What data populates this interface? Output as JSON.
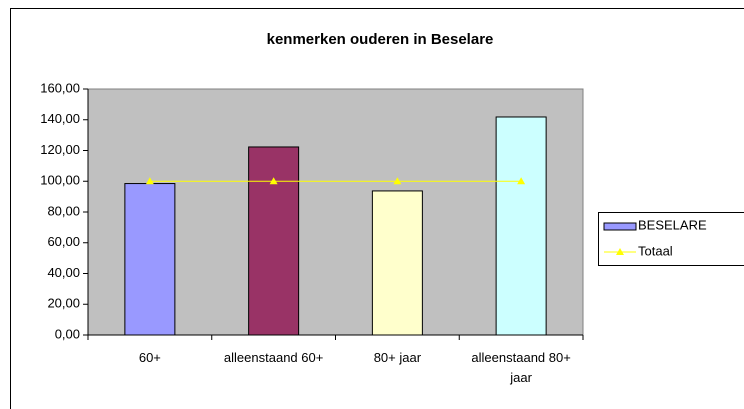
{
  "chart_data": {
    "type": "bar",
    "title": "kenmerken ouderen in Beselare",
    "categories": [
      "60+",
      "alleenstaand 60+",
      "80+ jaar",
      "alleenstaand 80+ jaar"
    ],
    "series": [
      {
        "name": "BESELARE",
        "type": "bar",
        "color": "#9999ff",
        "colors": [
          "#9999ff",
          "#993366",
          "#ffffcc",
          "#ccffff"
        ],
        "values": [
          98.5,
          122.3,
          93.7,
          141.8
        ]
      },
      {
        "name": "Totaal",
        "type": "line",
        "color": "#ffff00",
        "values": [
          100,
          100,
          100,
          100
        ]
      }
    ],
    "ylim": [
      0,
      160
    ],
    "yticks": [
      {
        "value": 0,
        "label": "0,00"
      },
      {
        "value": 20,
        "label": "20,00"
      },
      {
        "value": 40,
        "label": "40,00"
      },
      {
        "value": 60,
        "label": "60,00"
      },
      {
        "value": 80,
        "label": "80,00"
      },
      {
        "value": 100,
        "label": "100,00"
      },
      {
        "value": 120,
        "label": "120,00"
      },
      {
        "value": 140,
        "label": "140,00"
      },
      {
        "value": 160,
        "label": "160,00"
      }
    ],
    "legend": "right"
  }
}
